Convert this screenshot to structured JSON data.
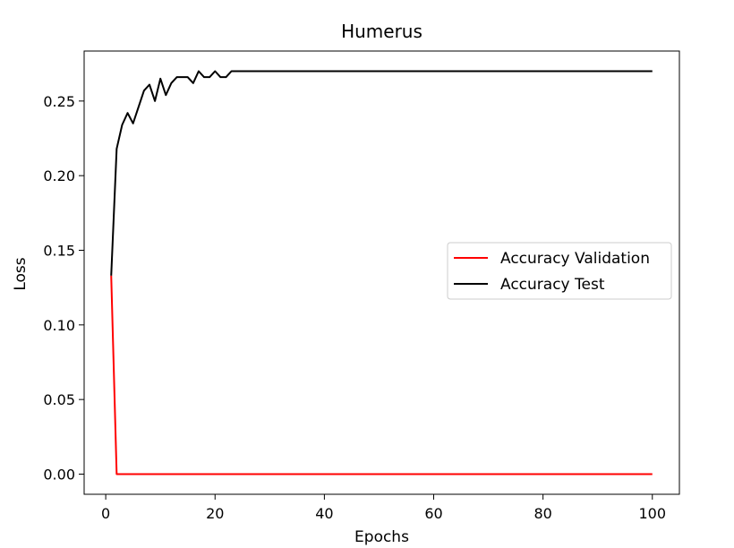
{
  "chart_data": {
    "type": "line",
    "title": "Humerus",
    "xlabel": "Epochs",
    "ylabel": "Loss",
    "xlim": [
      -3.95,
      104.95
    ],
    "ylim": [
      -0.0135,
      0.2835
    ],
    "xticks": [
      0,
      20,
      40,
      60,
      80,
      100
    ],
    "yticks": [
      0.0,
      0.05,
      0.1,
      0.15,
      0.2,
      0.25
    ],
    "xtick_labels": [
      "0",
      "20",
      "40",
      "60",
      "80",
      "100"
    ],
    "ytick_labels": [
      "0.00",
      "0.05",
      "0.10",
      "0.15",
      "0.20",
      "0.25"
    ],
    "grid": false,
    "legend_position": "center-right",
    "series": [
      {
        "name": "Accuracy Validation",
        "color": "#ff0000",
        "x": [
          1,
          2,
          100
        ],
        "y": [
          0.133,
          0.0,
          0.0
        ]
      },
      {
        "name": "Accuracy Test",
        "color": "#000000",
        "x": [
          1,
          2,
          3,
          4,
          5,
          6,
          7,
          8,
          9,
          10,
          11,
          12,
          13,
          14,
          15,
          16,
          17,
          18,
          19,
          20,
          21,
          22,
          23,
          24,
          30,
          40,
          50,
          60,
          70,
          80,
          90,
          100
        ],
        "y": [
          0.133,
          0.218,
          0.234,
          0.242,
          0.235,
          0.246,
          0.257,
          0.261,
          0.25,
          0.265,
          0.254,
          0.262,
          0.266,
          0.266,
          0.266,
          0.262,
          0.27,
          0.266,
          0.266,
          0.27,
          0.266,
          0.266,
          0.27,
          0.27,
          0.27,
          0.27,
          0.27,
          0.27,
          0.27,
          0.27,
          0.27,
          0.27
        ]
      }
    ]
  }
}
